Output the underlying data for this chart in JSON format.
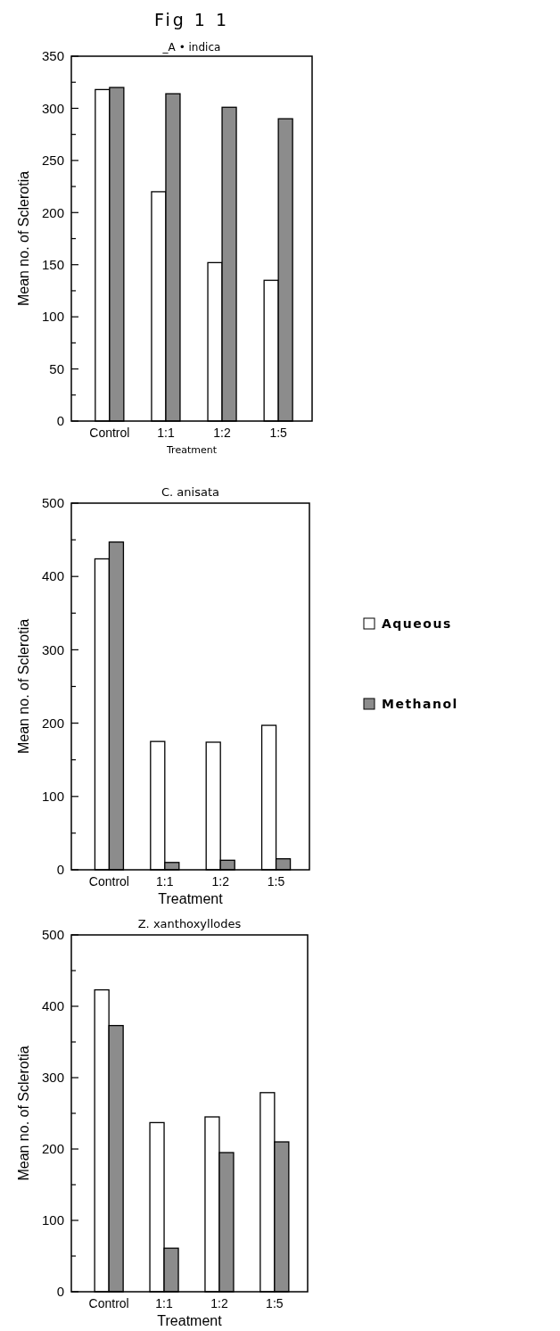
{
  "chart_data": [
    {
      "type": "bar",
      "title": "Fig 1 1",
      "subtitle": "_A • indica",
      "xlabel": "Treatment",
      "ylabel": "Mean no. of Sclerotia",
      "categories": [
        "Control",
        "1:1",
        "1:2",
        "1:5"
      ],
      "series": [
        {
          "color": "#ffffff",
          "values": [
            318,
            220,
            152,
            135
          ]
        },
        {
          "color": "#8c8c8c",
          "values": [
            320,
            314,
            301,
            290
          ]
        }
      ],
      "ylim": [
        0,
        350
      ],
      "yticks": [
        0,
        {
          "value": 25,
          "label": null
        },
        50,
        {
          "value": 75,
          "label": null
        },
        100,
        {
          "value": 125,
          "label": null
        },
        150,
        {
          "value": 175,
          "label": null
        },
        200,
        {
          "value": 225,
          "label": null
        },
        250,
        {
          "value": 275,
          "label": null
        },
        300,
        {
          "value": 325,
          "label": null
        },
        350
      ]
    },
    {
      "type": "bar",
      "title": "C. anisata",
      "xlabel": "Treatment",
      "ylabel": "Mean no. of Sclerotia",
      "categories": [
        "Control",
        "1:1",
        "1:2",
        "1:5"
      ],
      "series": [
        {
          "name": "Aqueous",
          "color": "#ffffff",
          "values": [
            424,
            175,
            174,
            197
          ]
        },
        {
          "name": "Methanol",
          "color": "#8c8c8c",
          "values": [
            447,
            10,
            13,
            15
          ]
        }
      ],
      "ylim": [
        0,
        500
      ],
      "yticks": [
        0,
        {
          "value": 50,
          "label": null
        },
        100,
        {
          "value": 150,
          "label": null
        },
        200,
        {
          "value": 250,
          "label": null
        },
        300,
        {
          "value": 350,
          "label": null
        },
        400,
        {
          "value": 450,
          "label": null
        },
        500
      ],
      "legend": "right"
    },
    {
      "type": "bar",
      "title": "Z. xanthoxyllodes",
      "xlabel": "Treatment",
      "ylabel": "Mean no. of Sclerotia",
      "categories": [
        "Control",
        "1:1",
        "1:2",
        "1:5"
      ],
      "series": [
        {
          "color": "#ffffff",
          "values": [
            423,
            237,
            245,
            279
          ]
        },
        {
          "color": "#8c8c8c",
          "values": [
            373,
            61,
            195,
            210
          ]
        }
      ],
      "ylim": [
        0,
        500
      ],
      "yticks": [
        0,
        {
          "value": 50,
          "label": null
        },
        100,
        {
          "value": 150,
          "label": null
        },
        200,
        {
          "value": 250,
          "label": null
        },
        300,
        {
          "value": 350,
          "label": null
        },
        400,
        {
          "value": 450,
          "label": null
        },
        500
      ]
    }
  ]
}
